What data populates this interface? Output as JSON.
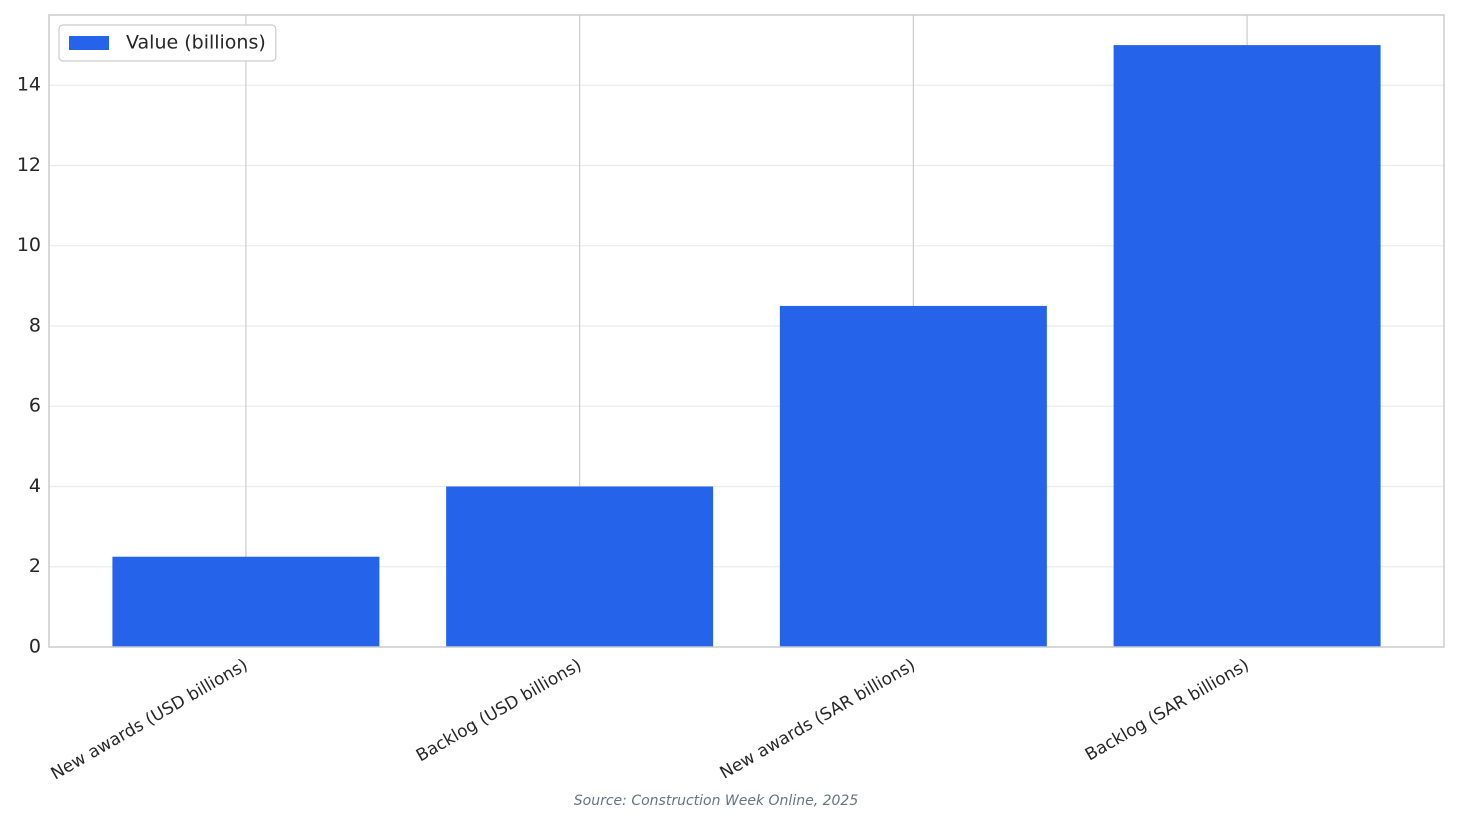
{
  "chart_data": {
    "type": "bar",
    "categories": [
      "New awards (USD billions)",
      "Backlog (USD billions)",
      "New awards (SAR billions)",
      "Backlog (SAR billions)"
    ],
    "series": [
      {
        "name": "Value (billions)",
        "color": "#2563eb",
        "values": [
          2.25,
          4.0,
          8.5,
          15.0
        ]
      }
    ],
    "ylim": [
      0,
      15.75
    ],
    "yticks": [
      0,
      2,
      4,
      6,
      8,
      10,
      12,
      14
    ],
    "grid": true,
    "legend": "upper left",
    "source": "Source: Construction Week Online, 2025"
  }
}
